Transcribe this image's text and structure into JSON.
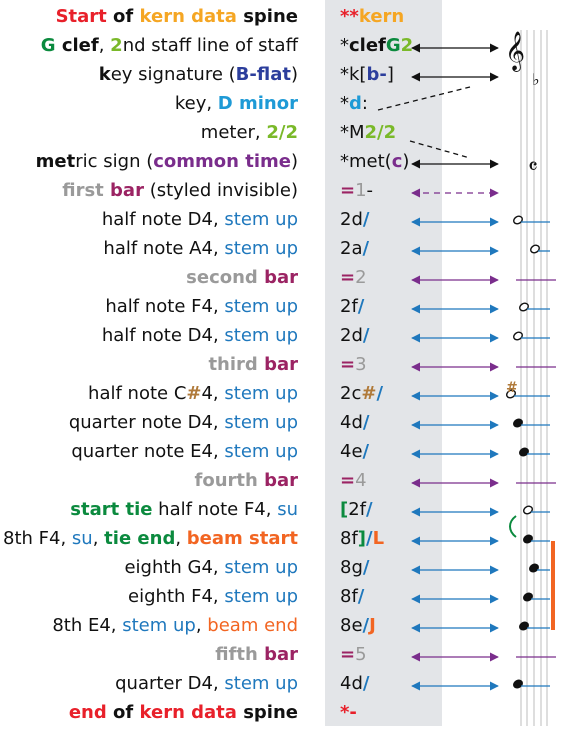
{
  "colors": {
    "red": "#e8202a",
    "orange": "#f5a623",
    "green": "#0b8a3e",
    "lightgreen": "#7ab929",
    "navy": "#2c3e9c",
    "skyblue": "#1e9ad6",
    "purple": "#7a2d8c",
    "maroon": "#9b2363",
    "gray": "#9a9a9a",
    "blue": "#1f78bd",
    "black": "#111111",
    "brown": "#b07a3a",
    "beam": "#f26522"
  },
  "rows": [
    {
      "desc": [
        {
          "t": "Start",
          "c": "red",
          "b": 1
        },
        {
          "t": " of ",
          "c": "black",
          "b": 1
        },
        {
          "t": "kern data",
          "c": "orange",
          "b": 1
        },
        {
          "t": " spine",
          "c": "black",
          "b": 1
        }
      ],
      "code": [
        {
          "t": "**",
          "c": "red",
          "b": 1
        },
        {
          "t": "kern",
          "c": "orange",
          "b": 1
        }
      ]
    },
    {
      "desc": [
        {
          "t": "G",
          "c": "green",
          "b": 1
        },
        {
          "t": " clef",
          "c": "black",
          "b": 1
        },
        {
          "t": ", ",
          "c": "black"
        },
        {
          "t": "2",
          "c": "lightgreen",
          "b": 1
        },
        {
          "t": "nd staff line of staff",
          "c": "black"
        }
      ],
      "code": [
        {
          "t": "*",
          "c": "black"
        },
        {
          "t": "clef",
          "c": "black",
          "b": 1
        },
        {
          "t": "G",
          "c": "green",
          "b": 1
        },
        {
          "t": "2",
          "c": "lightgreen",
          "b": 1
        }
      ]
    },
    {
      "desc": [
        {
          "t": "k",
          "c": "black",
          "b": 1
        },
        {
          "t": "ey signature (",
          "c": "black"
        },
        {
          "t": "B-flat",
          "c": "navy",
          "b": 1
        },
        {
          "t": ")",
          "c": "black"
        }
      ],
      "code": [
        {
          "t": "*k[",
          "c": "black"
        },
        {
          "t": "b-",
          "c": "navy",
          "b": 1
        },
        {
          "t": "]",
          "c": "black"
        }
      ]
    },
    {
      "desc": [
        {
          "t": "key, ",
          "c": "black"
        },
        {
          "t": "D minor",
          "c": "skyblue",
          "b": 1
        }
      ],
      "code": [
        {
          "t": "*",
          "c": "black"
        },
        {
          "t": "d",
          "c": "skyblue",
          "b": 1
        },
        {
          "t": ":",
          "c": "black"
        }
      ]
    },
    {
      "desc": [
        {
          "t": "meter, ",
          "c": "black"
        },
        {
          "t": "2/2",
          "c": "lightgreen",
          "b": 1
        }
      ],
      "code": [
        {
          "t": "*M",
          "c": "black"
        },
        {
          "t": "2/2",
          "c": "lightgreen",
          "b": 1
        }
      ]
    },
    {
      "desc": [
        {
          "t": "met",
          "c": "black",
          "b": 1
        },
        {
          "t": "ric sign (",
          "c": "black"
        },
        {
          "t": "common time",
          "c": "purple",
          "b": 1
        },
        {
          "t": ")",
          "c": "black"
        }
      ],
      "code": [
        {
          "t": "*met(",
          "c": "black"
        },
        {
          "t": "c",
          "c": "purple",
          "b": 1
        },
        {
          "t": ")",
          "c": "black"
        }
      ]
    },
    {
      "desc": [
        {
          "t": "first ",
          "c": "gray",
          "b": 1
        },
        {
          "t": "bar",
          "c": "maroon",
          "b": 1
        },
        {
          "t": " (styled invisible)",
          "c": "black"
        }
      ],
      "code": [
        {
          "t": "=",
          "c": "maroon",
          "b": 1
        },
        {
          "t": "1",
          "c": "gray"
        },
        {
          "t": "-",
          "c": "black"
        }
      ]
    },
    {
      "desc": [
        {
          "t": "half note D4, ",
          "c": "black"
        },
        {
          "t": "stem up",
          "c": "blue"
        }
      ],
      "code": [
        {
          "t": "2d",
          "c": "black"
        },
        {
          "t": "/",
          "c": "blue",
          "b": 1
        }
      ]
    },
    {
      "desc": [
        {
          "t": "half note A4, ",
          "c": "black"
        },
        {
          "t": "stem up",
          "c": "blue"
        }
      ],
      "code": [
        {
          "t": "2a",
          "c": "black"
        },
        {
          "t": "/",
          "c": "blue",
          "b": 1
        }
      ]
    },
    {
      "desc": [
        {
          "t": "second ",
          "c": "gray",
          "b": 1
        },
        {
          "t": "bar",
          "c": "maroon",
          "b": 1
        }
      ],
      "code": [
        {
          "t": "=",
          "c": "maroon",
          "b": 1
        },
        {
          "t": "2",
          "c": "gray"
        }
      ]
    },
    {
      "desc": [
        {
          "t": "half note F4, ",
          "c": "black"
        },
        {
          "t": "stem up",
          "c": "blue"
        }
      ],
      "code": [
        {
          "t": "2f",
          "c": "black"
        },
        {
          "t": "/",
          "c": "blue",
          "b": 1
        }
      ]
    },
    {
      "desc": [
        {
          "t": "half note D4, ",
          "c": "black"
        },
        {
          "t": "stem up",
          "c": "blue"
        }
      ],
      "code": [
        {
          "t": "2d",
          "c": "black"
        },
        {
          "t": "/",
          "c": "blue",
          "b": 1
        }
      ]
    },
    {
      "desc": [
        {
          "t": "third ",
          "c": "gray",
          "b": 1
        },
        {
          "t": "bar",
          "c": "maroon",
          "b": 1
        }
      ],
      "code": [
        {
          "t": "=",
          "c": "maroon",
          "b": 1
        },
        {
          "t": "3",
          "c": "gray"
        }
      ]
    },
    {
      "desc": [
        {
          "t": "half note C",
          "c": "black"
        },
        {
          "t": "#",
          "c": "brown",
          "b": 1
        },
        {
          "t": "4, ",
          "c": "black"
        },
        {
          "t": "stem up",
          "c": "blue"
        }
      ],
      "code": [
        {
          "t": "2c",
          "c": "black"
        },
        {
          "t": "#",
          "c": "brown",
          "b": 1
        },
        {
          "t": "/",
          "c": "blue",
          "b": 1
        }
      ]
    },
    {
      "desc": [
        {
          "t": "quarter note D4, ",
          "c": "black"
        },
        {
          "t": "stem up",
          "c": "blue"
        }
      ],
      "code": [
        {
          "t": "4d",
          "c": "black"
        },
        {
          "t": "/",
          "c": "blue",
          "b": 1
        }
      ]
    },
    {
      "desc": [
        {
          "t": "quarter note E4, ",
          "c": "black"
        },
        {
          "t": "stem up",
          "c": "blue"
        }
      ],
      "code": [
        {
          "t": "4e",
          "c": "black"
        },
        {
          "t": "/",
          "c": "blue",
          "b": 1
        }
      ]
    },
    {
      "desc": [
        {
          "t": "fourth ",
          "c": "gray",
          "b": 1
        },
        {
          "t": "bar",
          "c": "maroon",
          "b": 1
        }
      ],
      "code": [
        {
          "t": "=",
          "c": "maroon",
          "b": 1
        },
        {
          "t": "4",
          "c": "gray"
        }
      ]
    },
    {
      "desc": [
        {
          "t": "start tie",
          "c": "green",
          "b": 1
        },
        {
          "t": " half note F4, ",
          "c": "black"
        },
        {
          "t": "su",
          "c": "blue"
        }
      ],
      "code": [
        {
          "t": "[",
          "c": "green",
          "b": 1
        },
        {
          "t": "2f",
          "c": "black"
        },
        {
          "t": "/",
          "c": "blue",
          "b": 1
        }
      ]
    },
    {
      "desc": [
        {
          "t": "8th F4, ",
          "c": "black"
        },
        {
          "t": "su",
          "c": "blue"
        },
        {
          "t": ", ",
          "c": "black"
        },
        {
          "t": "tie end",
          "c": "green",
          "b": 1
        },
        {
          "t": ", ",
          "c": "black"
        },
        {
          "t": "beam start",
          "c": "beam",
          "b": 1
        }
      ],
      "code": [
        {
          "t": "8f",
          "c": "black"
        },
        {
          "t": "]",
          "c": "green",
          "b": 1
        },
        {
          "t": "/",
          "c": "blue",
          "b": 1
        },
        {
          "t": "L",
          "c": "beam",
          "b": 1
        }
      ]
    },
    {
      "desc": [
        {
          "t": "eighth G4, ",
          "c": "black"
        },
        {
          "t": "stem up",
          "c": "blue"
        }
      ],
      "code": [
        {
          "t": "8g",
          "c": "black"
        },
        {
          "t": "/",
          "c": "blue",
          "b": 1
        }
      ]
    },
    {
      "desc": [
        {
          "t": "eighth F4, ",
          "c": "black"
        },
        {
          "t": "stem up",
          "c": "blue"
        }
      ],
      "code": [
        {
          "t": "8f",
          "c": "black"
        },
        {
          "t": "/",
          "c": "blue",
          "b": 1
        }
      ]
    },
    {
      "desc": [
        {
          "t": "8th E4, ",
          "c": "black"
        },
        {
          "t": "stem up",
          "c": "blue"
        },
        {
          "t": ", ",
          "c": "black"
        },
        {
          "t": "beam end",
          "c": "beam"
        }
      ],
      "code": [
        {
          "t": "8e",
          "c": "black"
        },
        {
          "t": "/",
          "c": "blue",
          "b": 1
        },
        {
          "t": "J",
          "c": "beam",
          "b": 1
        }
      ]
    },
    {
      "desc": [
        {
          "t": "fifth ",
          "c": "gray",
          "b": 1
        },
        {
          "t": "bar",
          "c": "maroon",
          "b": 1
        }
      ],
      "code": [
        {
          "t": "=",
          "c": "maroon",
          "b": 1
        },
        {
          "t": "5",
          "c": "gray"
        }
      ]
    },
    {
      "desc": [
        {
          "t": "quarter D4, ",
          "c": "black"
        },
        {
          "t": "stem up",
          "c": "blue"
        }
      ],
      "code": [
        {
          "t": "4d",
          "c": "black"
        },
        {
          "t": "/",
          "c": "blue",
          "b": 1
        }
      ]
    },
    {
      "desc": [
        {
          "t": "end",
          "c": "red",
          "b": 1
        },
        {
          "t": " of ",
          "c": "black",
          "b": 1
        },
        {
          "t": "kern data",
          "c": "red",
          "b": 1
        },
        {
          "t": " spine",
          "c": "black",
          "b": 1
        }
      ],
      "code": [
        {
          "t": "*-",
          "c": "red",
          "b": 1
        }
      ]
    }
  ],
  "notation": {
    "clef_symbol": "𝄞",
    "flat_symbol": "♭",
    "common_time_symbol": "𝄴",
    "sharp_symbol": "#"
  }
}
